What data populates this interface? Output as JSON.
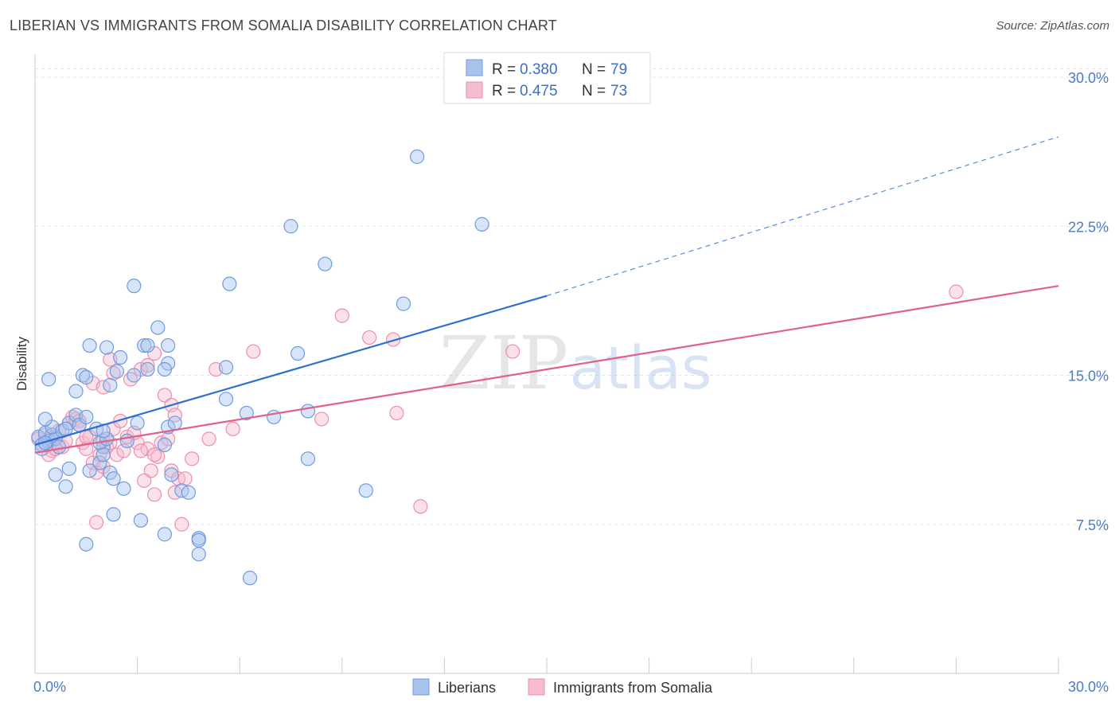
{
  "title": "LIBERIAN VS IMMIGRANTS FROM SOMALIA DISABILITY CORRELATION CHART",
  "source": "Source: ZipAtlas.com",
  "watermark": {
    "zip": "ZIP",
    "atlas": "atlas"
  },
  "colors": {
    "liberian_fill": "#a8c4ee",
    "liberian_stroke": "#6f9be0",
    "liberian_line": "#2f6fd0",
    "somalia_fill": "#f6bccf",
    "somalia_stroke": "#ec8fb0",
    "somalia_line": "#e0608e",
    "tick_text": "#4a7cc7",
    "grid": "#e3e3e3"
  },
  "legend": {
    "liberian": {
      "r_label": "R =",
      "r_value": "0.380",
      "n_label": "N =",
      "n_value": "79"
    },
    "somalia": {
      "r_label": "R =",
      "r_value": "0.475",
      "n_label": "N =",
      "n_value": "73"
    }
  },
  "chart_data": {
    "type": "scatter",
    "title": "LIBERIAN VS IMMIGRANTS FROM SOMALIA DISABILITY CORRELATION CHART",
    "xlabel": "",
    "ylabel": "Disability",
    "xlim": [
      0,
      30
    ],
    "ylim": [
      0,
      30.5
    ],
    "x_tick_labels": [
      "0.0%",
      "30.0%"
    ],
    "y_ticks": [
      7.5,
      15.0,
      22.5,
      30.0
    ],
    "y_tick_labels": [
      "7.5%",
      "15.0%",
      "22.5%",
      "30.0%"
    ],
    "grid": true,
    "legend_position": "top-center",
    "series": [
      {
        "name": "Liberians",
        "r": 0.38,
        "n": 79,
        "trend": {
          "x_start": 0.0,
          "y_start": 11.5,
          "x_solid_end": 15.0,
          "y_solid_end": 19.0,
          "x_dash_end": 30.0,
          "y_dash_end": 27.0
        },
        "points": [
          [
            0.1,
            11.9
          ],
          [
            0.2,
            11.5
          ],
          [
            0.3,
            12.1
          ],
          [
            0.4,
            11.7
          ],
          [
            0.5,
            12.0
          ],
          [
            0.2,
            11.3
          ],
          [
            0.6,
            11.8
          ],
          [
            0.3,
            11.6
          ],
          [
            0.5,
            12.4
          ],
          [
            0.8,
            12.2
          ],
          [
            1.0,
            12.6
          ],
          [
            0.7,
            11.4
          ],
          [
            1.2,
            13.0
          ],
          [
            1.3,
            12.5
          ],
          [
            0.9,
            12.3
          ],
          [
            1.5,
            12.9
          ],
          [
            0.4,
            14.8
          ],
          [
            1.2,
            14.2
          ],
          [
            1.4,
            15.0
          ],
          [
            1.5,
            14.9
          ],
          [
            1.6,
            16.5
          ],
          [
            2.1,
            16.4
          ],
          [
            2.5,
            15.9
          ],
          [
            2.4,
            15.2
          ],
          [
            2.2,
            14.5
          ],
          [
            1.8,
            12.3
          ],
          [
            2.0,
            11.4
          ],
          [
            1.9,
            11.6
          ],
          [
            2.1,
            11.8
          ],
          [
            2.0,
            12.2
          ],
          [
            2.7,
            11.7
          ],
          [
            3.0,
            12.6
          ],
          [
            2.9,
            15.0
          ],
          [
            2.9,
            19.5
          ],
          [
            3.2,
            16.5
          ],
          [
            3.6,
            17.4
          ],
          [
            3.3,
            16.5
          ],
          [
            3.9,
            16.5
          ],
          [
            3.9,
            15.6
          ],
          [
            3.3,
            15.3
          ],
          [
            3.8,
            15.3
          ],
          [
            3.9,
            12.4
          ],
          [
            4.1,
            12.6
          ],
          [
            0.6,
            10.0
          ],
          [
            1.0,
            10.3
          ],
          [
            0.9,
            9.4
          ],
          [
            1.6,
            10.2
          ],
          [
            1.9,
            10.6
          ],
          [
            2.0,
            11.0
          ],
          [
            2.2,
            10.1
          ],
          [
            2.3,
            9.8
          ],
          [
            2.6,
            9.3
          ],
          [
            3.8,
            11.5
          ],
          [
            4.0,
            10.0
          ],
          [
            4.3,
            9.2
          ],
          [
            4.5,
            9.1
          ],
          [
            2.3,
            8.0
          ],
          [
            3.1,
            7.7
          ],
          [
            3.8,
            7.0
          ],
          [
            1.5,
            6.5
          ],
          [
            4.8,
            6.8
          ],
          [
            4.8,
            6.7
          ],
          [
            4.8,
            6.0
          ],
          [
            6.3,
            4.8
          ],
          [
            5.7,
            19.6
          ],
          [
            5.6,
            15.4
          ],
          [
            5.6,
            13.8
          ],
          [
            6.2,
            13.1
          ],
          [
            7.0,
            12.9
          ],
          [
            7.5,
            22.5
          ],
          [
            7.7,
            16.1
          ],
          [
            8.0,
            10.8
          ],
          [
            8.0,
            13.2
          ],
          [
            8.5,
            20.6
          ],
          [
            9.7,
            9.2
          ],
          [
            10.8,
            18.6
          ],
          [
            11.2,
            26.0
          ],
          [
            13.1,
            22.6
          ],
          [
            0.3,
            12.8
          ]
        ]
      },
      {
        "name": "Immigrants from Somalia",
        "r": 0.475,
        "n": 73,
        "trend": {
          "x_start": 0.0,
          "y_start": 11.1,
          "x_end": 30.0,
          "y_end": 19.5
        },
        "points": [
          [
            0.1,
            11.8
          ],
          [
            0.2,
            11.5
          ],
          [
            0.3,
            12.0
          ],
          [
            0.4,
            11.6
          ],
          [
            0.5,
            11.2
          ],
          [
            0.6,
            11.9
          ],
          [
            0.8,
            11.4
          ],
          [
            0.7,
            12.2
          ],
          [
            0.9,
            11.7
          ],
          [
            1.0,
            12.6
          ],
          [
            1.1,
            12.9
          ],
          [
            1.2,
            12.8
          ],
          [
            1.3,
            12.7
          ],
          [
            1.4,
            11.6
          ],
          [
            1.5,
            11.3
          ],
          [
            1.6,
            11.9
          ],
          [
            1.7,
            10.6
          ],
          [
            1.8,
            10.1
          ],
          [
            1.9,
            11.0
          ],
          [
            2.0,
            11.7
          ],
          [
            2.1,
            11.4
          ],
          [
            2.2,
            11.6
          ],
          [
            2.3,
            12.3
          ],
          [
            2.4,
            11.0
          ],
          [
            2.5,
            12.7
          ],
          [
            2.6,
            11.2
          ],
          [
            2.7,
            11.9
          ],
          [
            2.2,
            15.8
          ],
          [
            2.3,
            15.1
          ],
          [
            2.8,
            14.8
          ],
          [
            3.1,
            15.3
          ],
          [
            3.3,
            15.5
          ],
          [
            3.5,
            16.1
          ],
          [
            1.7,
            14.6
          ],
          [
            2.0,
            14.4
          ],
          [
            3.0,
            11.6
          ],
          [
            3.3,
            11.3
          ],
          [
            3.1,
            11.2
          ],
          [
            3.4,
            10.2
          ],
          [
            3.2,
            9.7
          ],
          [
            3.5,
            9.0
          ],
          [
            3.7,
            11.6
          ],
          [
            3.8,
            14.0
          ],
          [
            4.0,
            13.5
          ],
          [
            4.1,
            13.0
          ],
          [
            3.9,
            11.8
          ],
          [
            4.0,
            10.2
          ],
          [
            4.2,
            9.8
          ],
          [
            4.4,
            9.8
          ],
          [
            4.6,
            10.8
          ],
          [
            4.1,
            9.1
          ],
          [
            4.3,
            7.5
          ],
          [
            5.1,
            11.8
          ],
          [
            5.3,
            15.3
          ],
          [
            5.8,
            12.3
          ],
          [
            6.4,
            16.2
          ],
          [
            1.8,
            7.6
          ],
          [
            0.4,
            11.0
          ],
          [
            0.6,
            11.3
          ],
          [
            2.9,
            12.1
          ],
          [
            9.0,
            18.0
          ],
          [
            9.8,
            16.9
          ],
          [
            10.5,
            16.8
          ],
          [
            10.6,
            13.1
          ],
          [
            8.4,
            12.8
          ],
          [
            11.3,
            8.4
          ],
          [
            14.0,
            16.2
          ],
          [
            27.0,
            19.2
          ],
          [
            2.0,
            10.4
          ],
          [
            1.3,
            12.5
          ],
          [
            1.5,
            11.9
          ],
          [
            3.6,
            10.9
          ],
          [
            3.5,
            11.0
          ]
        ]
      }
    ]
  },
  "bottom_legend": {
    "liberian_label": "Liberians",
    "somalia_label": "Immigrants from Somalia"
  }
}
